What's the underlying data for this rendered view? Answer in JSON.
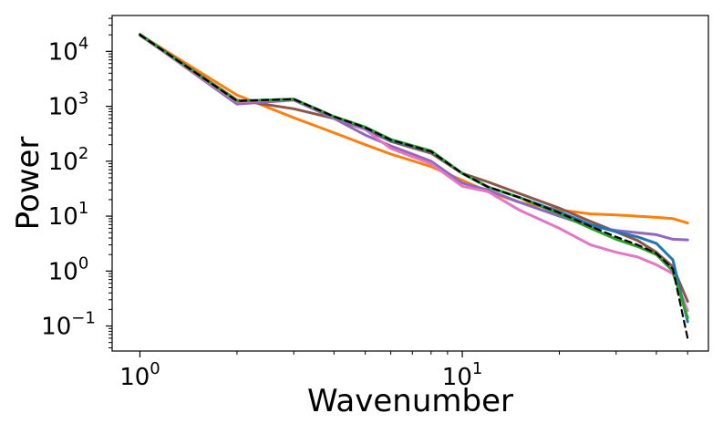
{
  "chart_data": {
    "type": "line",
    "title": "",
    "xlabel": "Wavenumber",
    "ylabel": "Power",
    "xscale": "log",
    "yscale": "log",
    "xlim": [
      0.82,
      58
    ],
    "ylim": [
      0.035,
      45000
    ],
    "grid": false,
    "legend": "none",
    "x_ticks": [
      {
        "value": 1,
        "base": "10",
        "exp": "0"
      },
      {
        "value": 10,
        "base": "10",
        "exp": "1"
      }
    ],
    "y_ticks": [
      {
        "value": 10000,
        "base": "10",
        "exp": "4"
      },
      {
        "value": 1000,
        "base": "10",
        "exp": "3"
      },
      {
        "value": 100,
        "base": "10",
        "exp": "2"
      },
      {
        "value": 10,
        "base": "10",
        "exp": "1"
      },
      {
        "value": 1,
        "base": "10",
        "exp": "0"
      },
      {
        "value": 0.1,
        "base": "10",
        "exp": "−1"
      }
    ],
    "x": [
      1,
      2,
      3,
      4,
      5,
      6,
      8,
      10,
      12,
      15,
      20,
      25,
      30,
      35,
      40,
      45,
      50
    ],
    "series": [
      {
        "name": "orange",
        "color": "#ff7f0e",
        "dash": false,
        "values": [
          20000,
          1600,
          620,
          330,
          200,
          135,
          80,
          45,
          28,
          18,
          13,
          11,
          10.5,
          10,
          9.5,
          9,
          7.5
        ]
      },
      {
        "name": "brown",
        "color": "#8c564b",
        "dash": false,
        "values": [
          20500,
          1300,
          900,
          600,
          380,
          230,
          140,
          60,
          42,
          26,
          14,
          8,
          5.2,
          3.6,
          2.2,
          1.2,
          0.28
        ]
      },
      {
        "name": "purple",
        "color": "#9467bd",
        "dash": false,
        "values": [
          20000,
          1100,
          1300,
          600,
          300,
          190,
          100,
          40,
          30,
          18,
          10,
          6.5,
          5.5,
          5,
          4.6,
          3.8,
          3.7
        ]
      },
      {
        "name": "pink",
        "color": "#e377c2",
        "dash": false,
        "values": [
          19500,
          1200,
          1350,
          650,
          380,
          170,
          90,
          35,
          28,
          13,
          6,
          3,
          2.2,
          1.8,
          1.3,
          0.9,
          0.19
        ]
      },
      {
        "name": "blue",
        "color": "#1f77b4",
        "dash": false,
        "values": [
          20000,
          1250,
          1350,
          650,
          400,
          240,
          150,
          60,
          34,
          22,
          12,
          7,
          5.2,
          4.2,
          3.2,
          1.6,
          0.12
        ]
      },
      {
        "name": "green",
        "color": "#2ca02c",
        "dash": false,
        "values": [
          20000,
          1250,
          1350,
          650,
          420,
          250,
          155,
          60,
          34,
          22,
          11,
          6,
          3.8,
          2.8,
          2,
          1,
          0.14
        ]
      },
      {
        "name": "black-dashed",
        "color": "#000000",
        "dash": true,
        "values": [
          20000,
          1250,
          1350,
          650,
          410,
          245,
          150,
          60,
          34,
          22,
          11.5,
          6.5,
          4.2,
          3,
          2.1,
          1.1,
          0.06
        ]
      }
    ]
  }
}
